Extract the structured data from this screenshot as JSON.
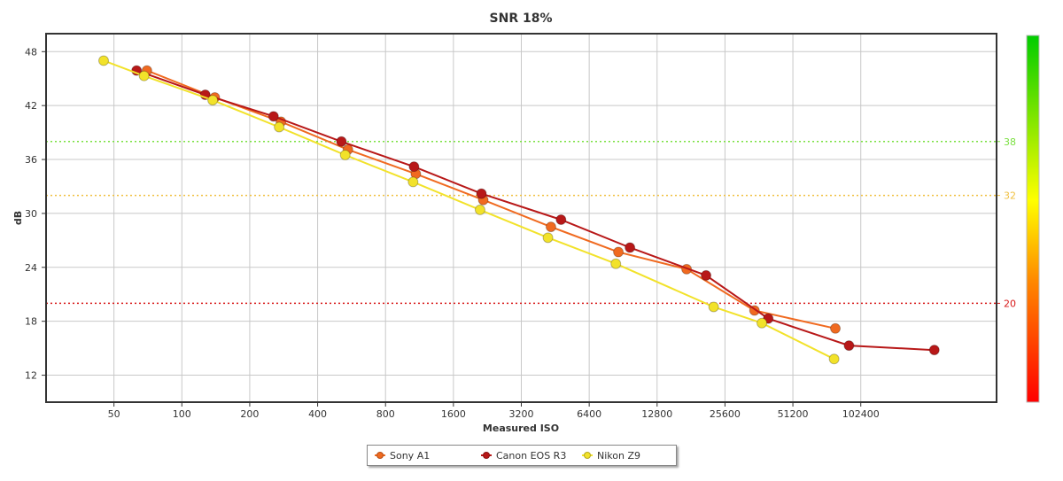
{
  "chart_data": {
    "type": "line",
    "title": "SNR 18%",
    "xlabel": "Measured ISO",
    "ylabel": "dB",
    "x_scale": "log2",
    "xlim": [
      25,
      409600
    ],
    "ylim": [
      9,
      50
    ],
    "x_ticks": [
      50,
      100,
      200,
      400,
      800,
      1600,
      3200,
      6400,
      12800,
      25600,
      51200,
      102400
    ],
    "x_tick_labels": [
      "50",
      "100",
      "200",
      "400",
      "800",
      "1600",
      "3200",
      "6400",
      "12800",
      "25600",
      "51200",
      "102400"
    ],
    "y_ticks": [
      12,
      18,
      24,
      30,
      36,
      42,
      48
    ],
    "y_tick_labels": [
      "12",
      "18",
      "24",
      "30",
      "36",
      "42",
      "48"
    ],
    "grid": true,
    "legend_position": "bottom-center",
    "reference_lines": [
      {
        "value": 38,
        "label": "38",
        "color": "#7ae040"
      },
      {
        "value": 32,
        "label": "32",
        "color": "#f0c040"
      },
      {
        "value": 20,
        "label": "20",
        "color": "#d81818"
      }
    ],
    "color_bar": {
      "colors": [
        "#ff0000",
        "#ff8800",
        "#ffff00",
        "#00cc00"
      ]
    },
    "series": [
      {
        "name": "Sony A1",
        "color": "#f06a20",
        "x": [
          70,
          140,
          275,
          545,
          1090,
          2170,
          4330,
          8620,
          17300,
          34600,
          79000
        ],
        "y": [
          45.9,
          42.9,
          40.2,
          37.1,
          34.4,
          31.5,
          28.5,
          25.7,
          23.8,
          19.2,
          17.2
        ]
      },
      {
        "name": "Canon EOS R3",
        "color": "#b81818",
        "x": [
          63,
          127,
          255,
          510,
          1070,
          2130,
          4800,
          9700,
          21100,
          39800,
          90800,
          217000
        ],
        "y": [
          45.9,
          43.2,
          40.8,
          38.0,
          35.2,
          32.2,
          29.3,
          26.2,
          23.1,
          18.3,
          15.3,
          14.8
        ]
      },
      {
        "name": "Nikon Z9",
        "color": "#f2e22a",
        "x": [
          45,
          68,
          137,
          270,
          530,
          1060,
          2100,
          4200,
          8400,
          22800,
          37300,
          78000
        ],
        "y": [
          47.0,
          45.3,
          42.6,
          39.6,
          36.5,
          33.5,
          30.4,
          27.3,
          24.4,
          19.6,
          17.8,
          13.8
        ]
      }
    ]
  }
}
